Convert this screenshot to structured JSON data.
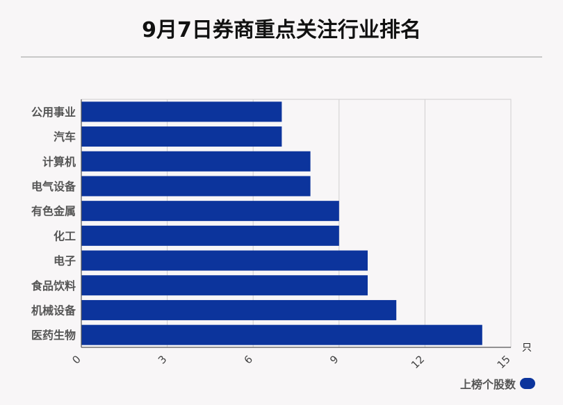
{
  "title": "9月7日券商重点关注行业排名",
  "chart_data": {
    "type": "bar",
    "orientation": "horizontal",
    "categories": [
      "公用事业",
      "汽车",
      "计算机",
      "电气设备",
      "有色金属",
      "化工",
      "电子",
      "食品饮料",
      "机械设备",
      "医药生物"
    ],
    "series": [
      {
        "name": "上榜个股数",
        "values": [
          7,
          7,
          8,
          8,
          9,
          9,
          10,
          10,
          11,
          14
        ]
      }
    ],
    "xlim": [
      0,
      15
    ],
    "xticks": [
      "0",
      "3",
      "6",
      "9",
      "12",
      "15"
    ],
    "xunit": "只",
    "grid": true,
    "legend_position": "bottom-right",
    "bar_color": "#0c349c"
  }
}
